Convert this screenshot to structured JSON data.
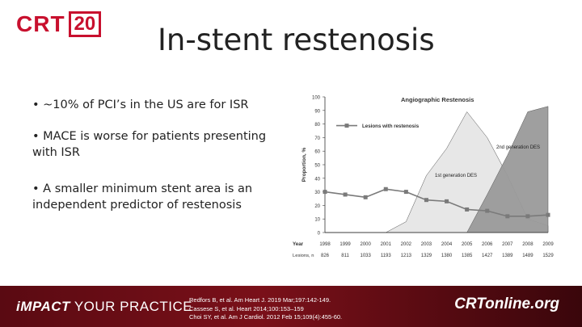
{
  "header": {
    "logo_text": "CRT",
    "logo_number": "20",
    "title": "In-stent restenosis"
  },
  "bullets": [
    "• ~10% of PCI’s in the US are for ISR",
    "• MACE is worse for patients presenting with ISR",
    "• A smaller minimum stent area is an independent predictor of restenosis"
  ],
  "chart_data": {
    "type": "area",
    "title": "Angiographic Restenosis",
    "ylabel": "Proportion, %",
    "ylim": [
      0,
      100
    ],
    "yticks": [
      0,
      10,
      20,
      30,
      40,
      50,
      60,
      70,
      80,
      90,
      100
    ],
    "x_label": "Year",
    "x": [
      "1998",
      "1999",
      "2000",
      "2001",
      "2002",
      "2003",
      "2004",
      "2005",
      "2006",
      "2007",
      "2008",
      "2009"
    ],
    "row_label": "Lesions, n",
    "lesions_n": [
      "826",
      "811",
      "1033",
      "1193",
      "1213",
      "1329",
      "1380",
      "1385",
      "1427",
      "1389",
      "1489",
      "1529"
    ],
    "series": [
      {
        "name": "Lesions with restenosis",
        "type": "line",
        "values": [
          30,
          28,
          26,
          32,
          30,
          24,
          23,
          17,
          16,
          12,
          12,
          13
        ]
      },
      {
        "name": "1st generation DES",
        "type": "area",
        "color": "#e6e6e6",
        "values": [
          0,
          0,
          0,
          0,
          8,
          42,
          62,
          89,
          70,
          42,
          10,
          5
        ]
      },
      {
        "name": "2nd generation DES",
        "type": "area",
        "color": "#9a9a9a",
        "values": [
          0,
          0,
          0,
          0,
          0,
          0,
          0,
          0,
          28,
          57,
          89,
          93
        ]
      }
    ],
    "legend": "top-left"
  },
  "footer": {
    "slogan_prefix": "iMPACT",
    "slogan_rest": " YOUR PRACTICE",
    "references": [
      "Redfors B, et al. Am Heart J. 2019 Mar;197:142-149.",
      "Cassese S, et al. Heart 2014;100:153–159",
      "Choi SY, et al. Am J Cardiol. 2012 Feb 15;109(4):455-60."
    ],
    "brand": "CRTonline.org"
  }
}
